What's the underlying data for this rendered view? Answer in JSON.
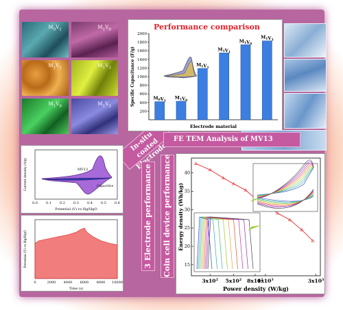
{
  "sem_labels": [
    "M",
    "M",
    "M",
    "M",
    "M",
    "M"
  ],
  "sem_label_subs": [
    [
      "0",
      "V",
      "1"
    ],
    [
      "1",
      "V",
      "0"
    ],
    [
      "1",
      "V",
      "1"
    ],
    [
      "1",
      "V",
      "3"
    ],
    [
      "1",
      "V",
      "9"
    ],
    [
      "1",
      "V",
      "3"
    ]
  ],
  "banners": {
    "insitu": "In-situ coated Electrodes",
    "tem": "FE TEM Analysis of MV13",
    "three_electrode": "3 Electrode performance",
    "coin_cell": "Coin cell device performance"
  },
  "chart_data": [
    {
      "type": "bar",
      "title": "Performance comparison",
      "categories": [
        "M0V1",
        "M1V0",
        "M1V1",
        "M1V1",
        "M1V9",
        "M1V3"
      ],
      "category_labels": [
        {
          "a": "M",
          "a_sub": "0",
          "b": "V",
          "b_sub": "1"
        },
        {
          "a": "M",
          "a_sub": "1",
          "b": "V",
          "b_sub": "0"
        },
        {
          "a": "M",
          "a_sub": "1",
          "b": "V",
          "b_sub": "1"
        },
        {
          "a": "M",
          "a_sub": "1",
          "b": "V",
          "b_sub": "1"
        },
        {
          "a": "M",
          "a_sub": "1",
          "b": "V",
          "b_sub": "9"
        },
        {
          "a": "M",
          "a_sub": "1",
          "b": "V",
          "b_sub": "3"
        }
      ],
      "values": [
        420,
        430,
        1190,
        1550,
        1740,
        1830
      ],
      "xlabel": "Electrode material",
      "ylabel": "Specific Capacitance (F/g)",
      "ylim": [
        0,
        2000
      ],
      "yticks": [
        200,
        400,
        600,
        800,
        1000,
        1200,
        1400,
        1600,
        1800,
        2000
      ],
      "color": "#3c7fe0"
    },
    {
      "type": "line",
      "title": "",
      "xlabel": "Potential (V) vs Hg/HgO",
      "ylabel": "Current density (A/g)",
      "xticks": [
        "0.0",
        "0.1",
        "0.2",
        "0.3",
        "0.4",
        "0.5",
        "0.6"
      ],
      "annotations": [
        "MV13",
        "Capacitive"
      ]
    },
    {
      "type": "line",
      "title": "",
      "xlabel": "Time (s)",
      "ylabel": "Potential (V) vs Hg/HgO",
      "xticks": [
        "0",
        "2000",
        "4000",
        "6000",
        "8000",
        "10000"
      ],
      "x": [
        0,
        500,
        1000,
        2000,
        3000,
        4000,
        5000,
        5500,
        6000,
        6300,
        7000,
        8000,
        9000,
        10000
      ],
      "y": [
        0.42,
        0.45,
        0.46,
        0.48,
        0.5,
        0.52,
        0.55,
        0.58,
        0.6,
        0.55,
        0.5,
        0.45,
        0.42,
        0.4
      ],
      "color": "#e03030"
    },
    {
      "type": "line",
      "title": "",
      "xlabel": "Power density (W/kg)",
      "ylabel": "Energy density (Wh/kg)",
      "xticks": [
        "3x10",
        "5x10",
        "8x10",
        "1x10",
        "3x10"
      ],
      "xtick_exps": [
        "2",
        "2",
        "2",
        "3",
        "3"
      ],
      "yticks": [
        "15",
        "20",
        "25",
        "30",
        "35",
        "40"
      ],
      "x": [
        220,
        300,
        400,
        500,
        650,
        800,
        1000,
        1300,
        1700,
        2200,
        2800
      ],
      "y": [
        42.5,
        40.8,
        38.6,
        37.0,
        35.3,
        33.0,
        31.5,
        29.0,
        27.2,
        24.5,
        21.5
      ],
      "color": "#e8383c"
    }
  ]
}
